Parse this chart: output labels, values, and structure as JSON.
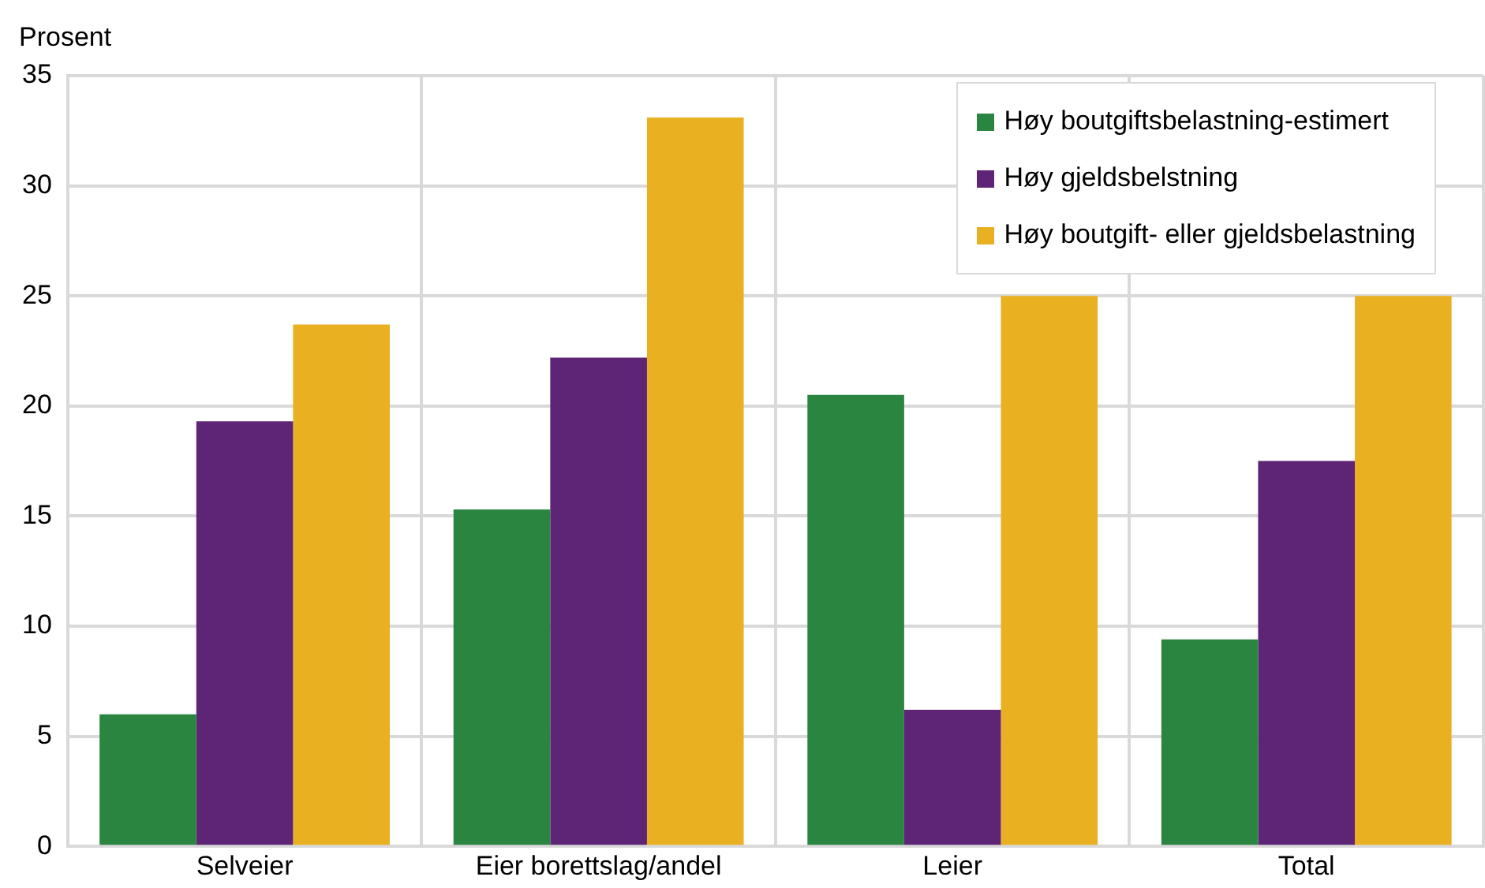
{
  "chart_data": {
    "type": "bar",
    "ylabel": "Prosent",
    "categories": [
      "Selveier",
      "Eier borettslag/andel",
      "Leier",
      "Total"
    ],
    "series": [
      {
        "name": "Høy boutgiftsbelastning-estimert",
        "color": "#2a8540",
        "values": [
          6.0,
          15.3,
          20.5,
          9.4
        ]
      },
      {
        "name": "Høy gjeldsbelstning",
        "color": "#5e2577",
        "values": [
          19.3,
          22.2,
          6.2,
          17.5
        ]
      },
      {
        "name": "Høy boutgift- eller gjeldsbelastning",
        "color": "#e9b022",
        "values": [
          23.7,
          33.1,
          25.0,
          25.0
        ]
      }
    ],
    "ylim": [
      0,
      35
    ],
    "yticks": [
      0,
      5,
      10,
      15,
      20,
      25,
      30,
      35
    ],
    "grid": true,
    "legend": "top right"
  }
}
